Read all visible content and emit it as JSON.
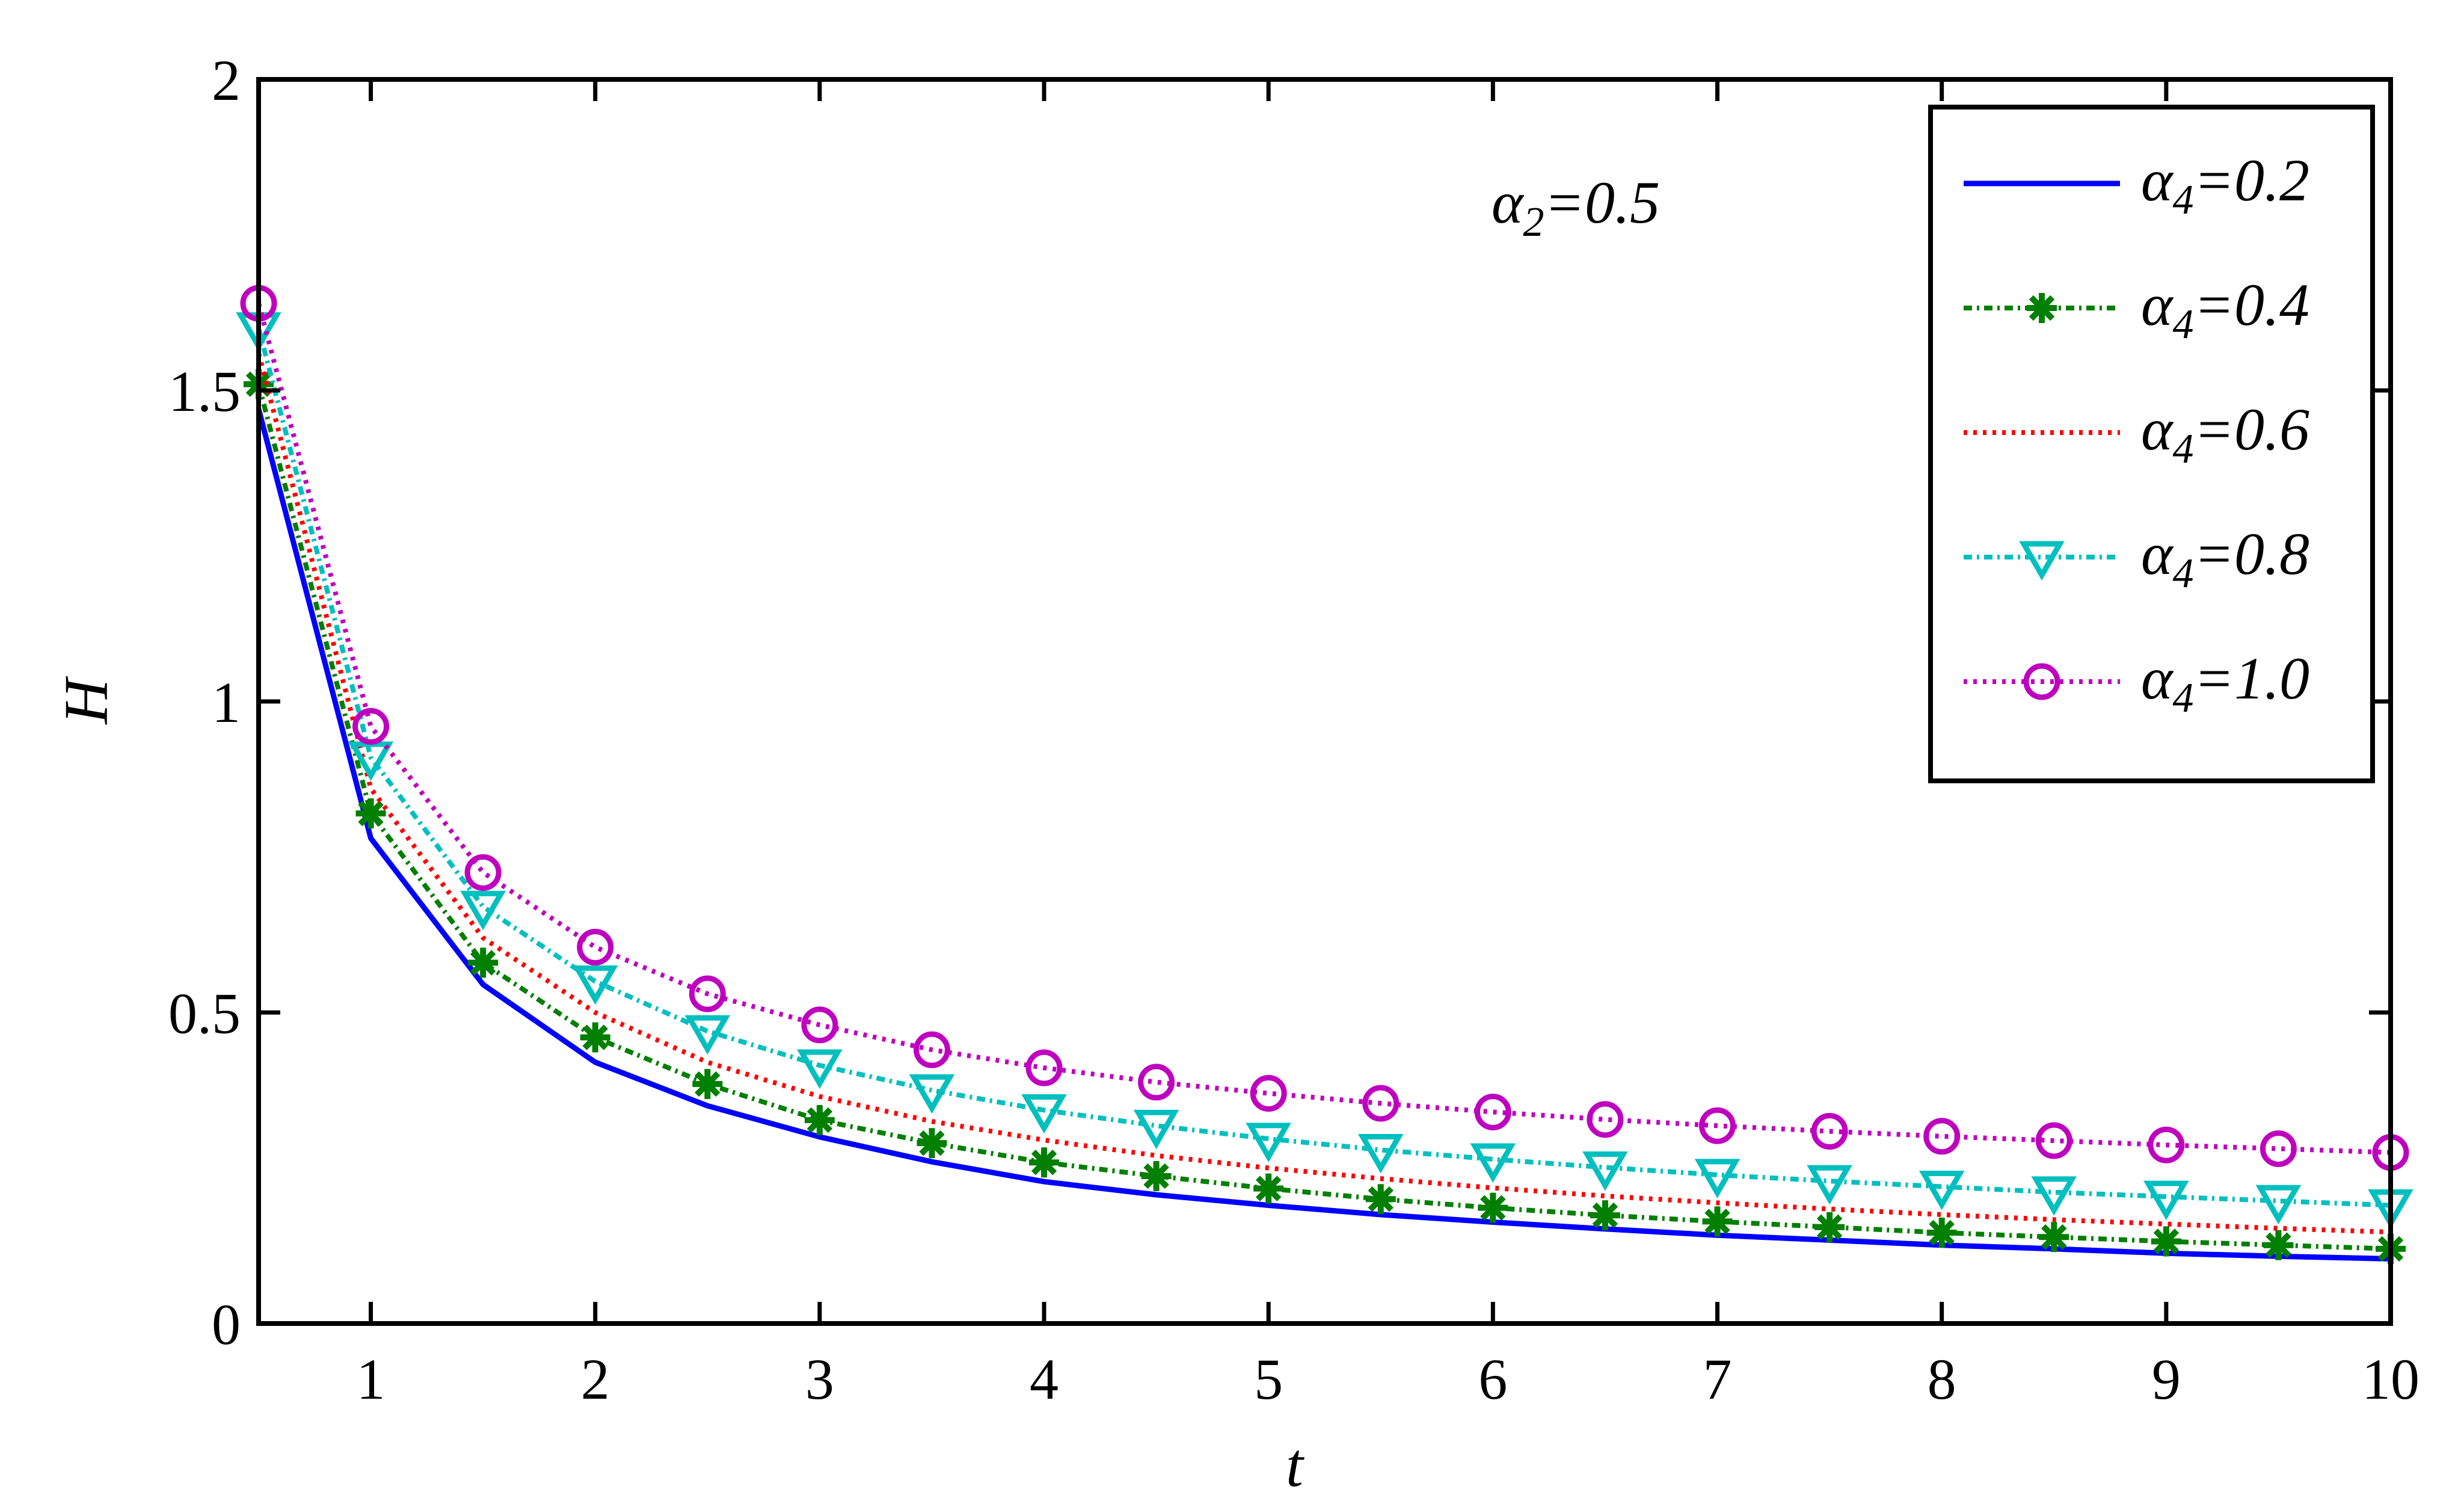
{
  "chart_data": {
    "type": "line",
    "xlabel": "t",
    "ylabel": "H",
    "xlim": [
      0.5,
      10
    ],
    "ylim": [
      0,
      2
    ],
    "xticks": [
      "1",
      "2",
      "3",
      "4",
      "5",
      "6",
      "7",
      "8",
      "9",
      "10"
    ],
    "yticks": [
      "0",
      "0.5",
      "1",
      "1.5",
      "2"
    ],
    "grid": false,
    "legend_position": "top-right",
    "annotation": {
      "symbol": "α",
      "subscript": "2",
      "rest": "=0.5"
    },
    "x": [
      0.5,
      1,
      1.5,
      2,
      2.5,
      3,
      3.5,
      4,
      4.5,
      5,
      5.5,
      6,
      6.5,
      7,
      7.5,
      8,
      8.5,
      9,
      9.5,
      10
    ],
    "series": [
      {
        "name": "α4=0.2",
        "label": {
          "symbol": "α",
          "subscript": "4",
          "rest": "=0.2"
        },
        "color": "#0000ff",
        "line": "solid",
        "marker": "none",
        "values": [
          1.47,
          0.78,
          0.545,
          0.42,
          0.35,
          0.3,
          0.26,
          0.228,
          0.207,
          0.19,
          0.175,
          0.163,
          0.152,
          0.142,
          0.134,
          0.126,
          0.12,
          0.113,
          0.108,
          0.104
        ]
      },
      {
        "name": "α4=0.4",
        "label": {
          "symbol": "α",
          "subscript": "4",
          "rest": "=0.4"
        },
        "color": "#007f00",
        "line": "dashdot",
        "marker": "asterisk",
        "values": [
          1.51,
          0.82,
          0.58,
          0.46,
          0.385,
          0.327,
          0.29,
          0.259,
          0.237,
          0.217,
          0.2,
          0.186,
          0.174,
          0.164,
          0.155,
          0.146,
          0.139,
          0.132,
          0.126,
          0.12
        ]
      },
      {
        "name": "α4=0.6",
        "label": {
          "symbol": "α",
          "subscript": "4",
          "rest": "=0.6"
        },
        "color": "#ff0000",
        "line": "dotted",
        "marker": "none",
        "values": [
          1.56,
          0.86,
          0.62,
          0.5,
          0.42,
          0.365,
          0.325,
          0.295,
          0.27,
          0.25,
          0.233,
          0.218,
          0.205,
          0.194,
          0.184,
          0.175,
          0.167,
          0.16,
          0.153,
          0.147
        ]
      },
      {
        "name": "α4=0.8",
        "label": {
          "symbol": "α",
          "subscript": "4",
          "rest": "=0.8"
        },
        "color": "#00bfbf",
        "line": "dashdot",
        "marker": "triangle-down",
        "values": [
          1.6,
          0.91,
          0.67,
          0.55,
          0.47,
          0.415,
          0.375,
          0.343,
          0.318,
          0.297,
          0.279,
          0.264,
          0.251,
          0.239,
          0.229,
          0.22,
          0.211,
          0.204,
          0.197,
          0.19
        ]
      },
      {
        "name": "α4=1.0",
        "label": {
          "symbol": "α",
          "subscript": "4",
          "rest": "=1.0"
        },
        "color": "#bf00bf",
        "line": "dotted",
        "marker": "circle",
        "values": [
          1.64,
          0.96,
          0.725,
          0.605,
          0.53,
          0.48,
          0.44,
          0.411,
          0.388,
          0.37,
          0.354,
          0.34,
          0.328,
          0.318,
          0.309,
          0.301,
          0.294,
          0.287,
          0.281,
          0.275
        ]
      }
    ]
  }
}
